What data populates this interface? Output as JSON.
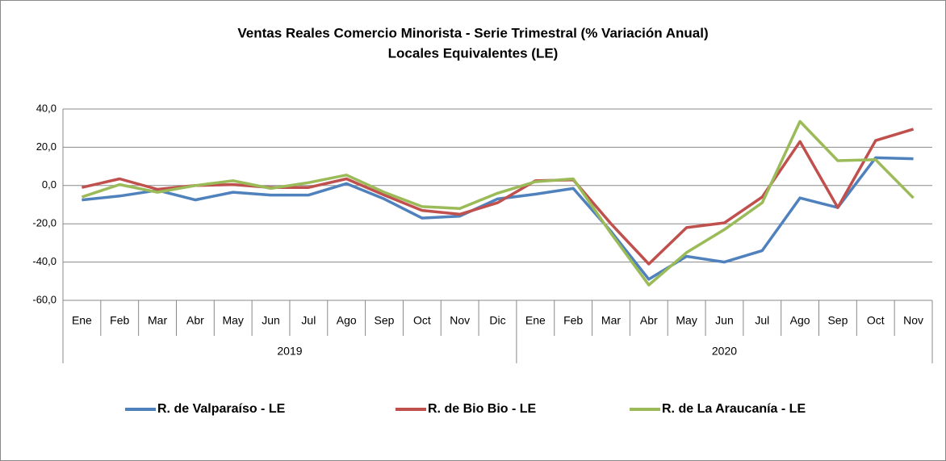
{
  "chart_data": {
    "type": "line",
    "title": "Ventas Reales Comercio Minorista - Serie Trimestral (% Variación Anual)",
    "subtitle": "Locales Equivalentes (LE)",
    "groups": [
      {
        "label": "2019",
        "categories": [
          "Ene",
          "Feb",
          "Mar",
          "Abr",
          "May",
          "Jun",
          "Jul",
          "Ago",
          "Sep",
          "Oct",
          "Nov",
          "Dic"
        ]
      },
      {
        "label": "2020",
        "categories": [
          "Ene",
          "Feb",
          "Mar",
          "Abr",
          "May",
          "Jun",
          "Jul",
          "Ago",
          "Sep",
          "Oct",
          "Nov"
        ]
      }
    ],
    "ylim": [
      -60,
      40
    ],
    "yticks": [
      {
        "value": -60,
        "label": "-60,0"
      },
      {
        "value": -40,
        "label": "-40,0"
      },
      {
        "value": -20,
        "label": "-20,0"
      },
      {
        "value": 0,
        "label": "0,0"
      },
      {
        "value": 20,
        "label": "20,0"
      },
      {
        "value": 40,
        "label": "40,0"
      }
    ],
    "grid": true,
    "legend": "bottom",
    "series": [
      {
        "name": "R. de Valparaíso - LE",
        "color": "#4f81bd",
        "values": [
          -7.5,
          -5.5,
          -2.5,
          -7.5,
          -3.5,
          -5,
          -5,
          1,
          -7,
          -17,
          -16,
          -7,
          -4.5,
          -1.5,
          -24,
          -49,
          -37,
          -40,
          -34,
          -6.5,
          -11.5,
          14.5,
          14
        ]
      },
      {
        "name": "R. de Bio Bio - LE",
        "color": "#c0504d",
        "values": [
          -1,
          3.5,
          -2,
          0,
          0.5,
          -1,
          -1,
          3.5,
          -5,
          -13,
          -15,
          -9,
          2.5,
          3,
          -20,
          -41,
          -22,
          -19.5,
          -6,
          23,
          -11.5,
          23.5,
          29.5
        ]
      },
      {
        "name": "R. de La Araucanía - LE",
        "color": "#9bbb59",
        "values": [
          -6,
          0.5,
          -3.5,
          0,
          2.5,
          -1.5,
          1.5,
          5.5,
          -3.5,
          -11,
          -12,
          -4,
          2,
          3.5,
          -25,
          -52,
          -35,
          -23,
          -9,
          33.5,
          13,
          13.5,
          -6.5
        ]
      }
    ]
  }
}
